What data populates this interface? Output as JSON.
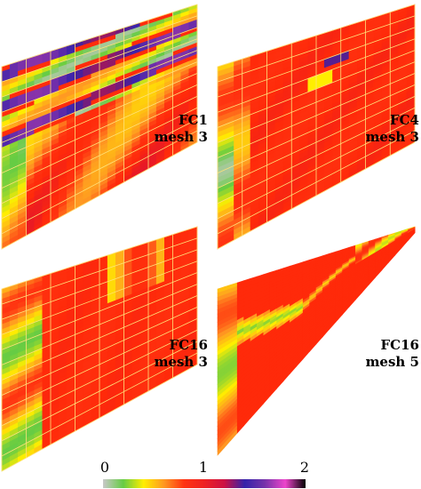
{
  "panels": [
    {
      "id": "fc1",
      "label_line1": "FC1",
      "label_line2": "mesh 3",
      "mesh": "coarse",
      "pattern": "banded"
    },
    {
      "id": "fc4",
      "label_line1": "FC4",
      "label_line2": "mesh 3",
      "mesh": "coarse",
      "pattern": "mostly-red"
    },
    {
      "id": "fc16a",
      "label_line1": "FC16",
      "label_line2": "mesh 3",
      "mesh": "coarse",
      "pattern": "mostly-red"
    },
    {
      "id": "fc16b",
      "label_line1": "FC16",
      "label_line2": "mesh 5",
      "mesh": "fine",
      "pattern": "crossed"
    }
  ],
  "colorbar": {
    "ticks": [
      "0",
      "1",
      "2"
    ],
    "range": [
      0,
      2
    ],
    "colors": [
      "#c8c8c8",
      "#66cc44",
      "#ffee00",
      "#ff9922",
      "#ff3311",
      "#ee2222",
      "#cc1144",
      "#3322aa",
      "#7733aa",
      "#ee44cc",
      "#000000"
    ]
  },
  "colors": {
    "mesh_line": "#ffe27a",
    "green": "#55dd33",
    "yellow": "#ffee00",
    "orange": "#ff8822",
    "red": "#ff2a0a",
    "blue": "#3322aa",
    "purple": "#9933bb"
  }
}
